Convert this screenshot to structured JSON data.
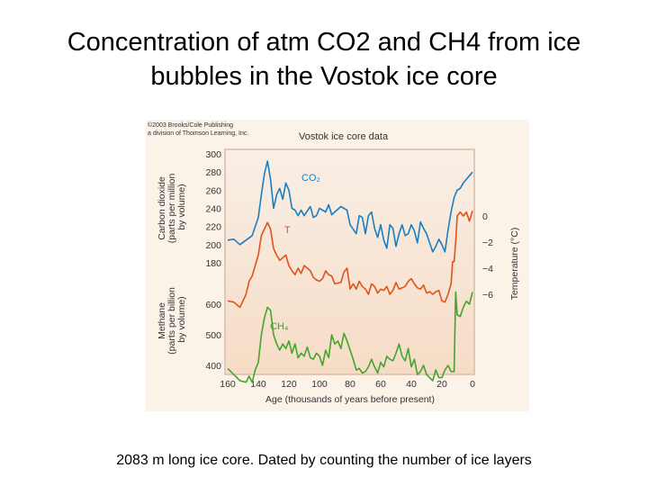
{
  "slide": {
    "title_line1": "Concentration of atm CO2 and CH4 from ice",
    "title_line2": "bubbles in the Vostok ice core",
    "caption": "2083 m long ice core.  Dated by counting the number of ice layers"
  },
  "figure": {
    "copyright_line1": "©2003 Brooks/Cole Publishing",
    "copyright_line2": "a division of Thomson Learning, Inc.",
    "title": "Vostok ice core data",
    "co2_axis_label": [
      "Carbon dioxide",
      "(parts per million",
      "by volume)"
    ],
    "ch4_axis_label": [
      "Methane",
      "(parts per billion",
      "by volume)"
    ],
    "temp_axis_label": "Temperature (°C)",
    "x_axis_label": "Age (thousands of years before present)",
    "series_label_co2": "CO₂",
    "series_label_t": "T",
    "series_label_ch4": "CH₄"
  },
  "chart_data": {
    "type": "line",
    "title": "Vostok ice core data",
    "xlabel": "Age (thousands of years before present)",
    "xlim": [
      160,
      0
    ],
    "x_ticks": [
      160,
      140,
      120,
      100,
      80,
      60,
      40,
      20,
      0
    ],
    "colors": {
      "co2": "#1a7fc1",
      "temperature": "#e0521b",
      "ch4": "#43a52e",
      "frame": "#e0c8b4"
    },
    "panels": [
      {
        "name": "co2",
        "ylabel": "Carbon dioxide (parts per million by volume)",
        "ylim": [
          180,
          300
        ],
        "y_ticks": [
          300,
          280,
          260,
          240,
          220,
          200,
          180
        ],
        "series": [
          {
            "name": "CO₂",
            "x": [
              160,
              156,
              152,
              148,
              144,
              140,
              138,
              136,
              134,
              132,
              130,
              128,
              126,
              124,
              122,
              120,
              118,
              116,
              114,
              112,
              110,
              106,
              104,
              102,
              100,
              96,
              94,
              92,
              90,
              86,
              84,
              82,
              80,
              76,
              74,
              72,
              70,
              68,
              66,
              64,
              62,
              60,
              58,
              56,
              54,
              52,
              50,
              48,
              46,
              44,
              42,
              40,
              38,
              36,
              34,
              32,
              30,
              28,
              26,
              24,
              22,
              20,
              18,
              16,
              14,
              12,
              10,
              8,
              6,
              4,
              2,
              0
            ],
            "values": [
              205,
              206,
              200,
              205,
              210,
              230,
              255,
              278,
              292,
              272,
              240,
              255,
              262,
              250,
              268,
              260,
              240,
              238,
              232,
              238,
              232,
              242,
              230,
              232,
              240,
              236,
              244,
              233,
              236,
              242,
              240,
              238,
              222,
              212,
              232,
              230,
              212,
              232,
              236,
              218,
              208,
              222,
              205,
              196,
              222,
              218,
              198,
              212,
              222,
              210,
              212,
              222,
              215,
              202,
              225,
              218,
              212,
              202,
              192,
              198,
              206,
              200,
              192,
              216,
              236,
              252,
              260,
              262,
              268,
              272,
              276,
              280
            ]
          }
        ]
      },
      {
        "name": "temperature",
        "ylabel": "Temperature (°C)",
        "ylim": [
          -8,
          2
        ],
        "y_ticks": [
          0,
          -2,
          -4,
          -6
        ],
        "series": [
          {
            "name": "T",
            "x": [
              160,
              156,
              152,
              148,
              146,
              144,
              140,
              138,
              136,
              134,
              132,
              130,
              128,
              126,
              124,
              122,
              120,
              118,
              116,
              114,
              112,
              110,
              106,
              104,
              102,
              100,
              98,
              96,
              94,
              92,
              90,
              86,
              84,
              82,
              80,
              78,
              76,
              74,
              72,
              70,
              68,
              66,
              64,
              62,
              60,
              58,
              56,
              54,
              52,
              50,
              48,
              46,
              44,
              42,
              40,
              38,
              36,
              34,
              32,
              30,
              28,
              26,
              24,
              22,
              20,
              18,
              16,
              14,
              13,
              12,
              11,
              10,
              8,
              6,
              4,
              2,
              0
            ],
            "values": [
              -6.5,
              -6.6,
              -7.0,
              -6.0,
              -5.0,
              -4.6,
              -3.0,
              -1.5,
              -1.0,
              -0.5,
              -1.0,
              -2.5,
              -3.0,
              -3.4,
              -3.2,
              -3.0,
              -3.8,
              -4.2,
              -4.5,
              -4.0,
              -4.4,
              -3.8,
              -4.2,
              -4.7,
              -4.9,
              -5.0,
              -4.8,
              -4.2,
              -4.5,
              -4.6,
              -5.2,
              -5.1,
              -4.3,
              -4.0,
              -5.6,
              -5.2,
              -5.6,
              -5.0,
              -5.4,
              -5.6,
              -6.0,
              -5.2,
              -5.4,
              -5.9,
              -5.6,
              -5.7,
              -5.4,
              -6.0,
              -5.7,
              -5.1,
              -5.6,
              -5.5,
              -5.4,
              -5.0,
              -4.8,
              -5.2,
              -5.5,
              -5.6,
              -5.3,
              -5.9,
              -5.8,
              -6.0,
              -5.8,
              -5.7,
              -6.5,
              -6.6,
              -6.0,
              -5.2,
              -3.5,
              -3.5,
              -2.0,
              0.0,
              0.3,
              0.0,
              0.3,
              -0.4,
              0.4
            ]
          }
        ]
      },
      {
        "name": "ch4",
        "ylabel": "Methane (parts per billion by volume)",
        "ylim": [
          300,
          700
        ],
        "y_ticks": [
          600,
          500,
          400
        ],
        "series": [
          {
            "name": "CH₄",
            "x": [
              160,
              156,
              152,
              148,
              146,
              144,
              142,
              140,
              138,
              136,
              134,
              132,
              130,
              128,
              126,
              124,
              122,
              120,
              118,
              116,
              114,
              112,
              110,
              108,
              106,
              104,
              102,
              100,
              98,
              96,
              94,
              92,
              90,
              88,
              86,
              84,
              82,
              80,
              78,
              76,
              74,
              72,
              70,
              68,
              66,
              64,
              62,
              60,
              58,
              56,
              54,
              52,
              50,
              48,
              46,
              44,
              42,
              40,
              38,
              36,
              34,
              32,
              30,
              28,
              26,
              24,
              22,
              20,
              18,
              16,
              14,
              12,
              11,
              10,
              8,
              6,
              4,
              2,
              0
            ],
            "values": [
              390,
              370,
              350,
              345,
              365,
              345,
              385,
              410,
              500,
              555,
              590,
              580,
              500,
              470,
              450,
              470,
              455,
              480,
              440,
              470,
              425,
              440,
              430,
              460,
              425,
              420,
              440,
              430,
              400,
              450,
              425,
              500,
              470,
              480,
              455,
              505,
              480,
              450,
              420,
              385,
              390,
              375,
              380,
              395,
              420,
              395,
              375,
              410,
              395,
              430,
              420,
              415,
              440,
              470,
              430,
              415,
              455,
              395,
              420,
              370,
              380,
              400,
              370,
              360,
              350,
              385,
              360,
              360,
              385,
              400,
              380,
              380,
              640,
              565,
              560,
              590,
              610,
              600,
              640
            ]
          }
        ]
      }
    ]
  }
}
